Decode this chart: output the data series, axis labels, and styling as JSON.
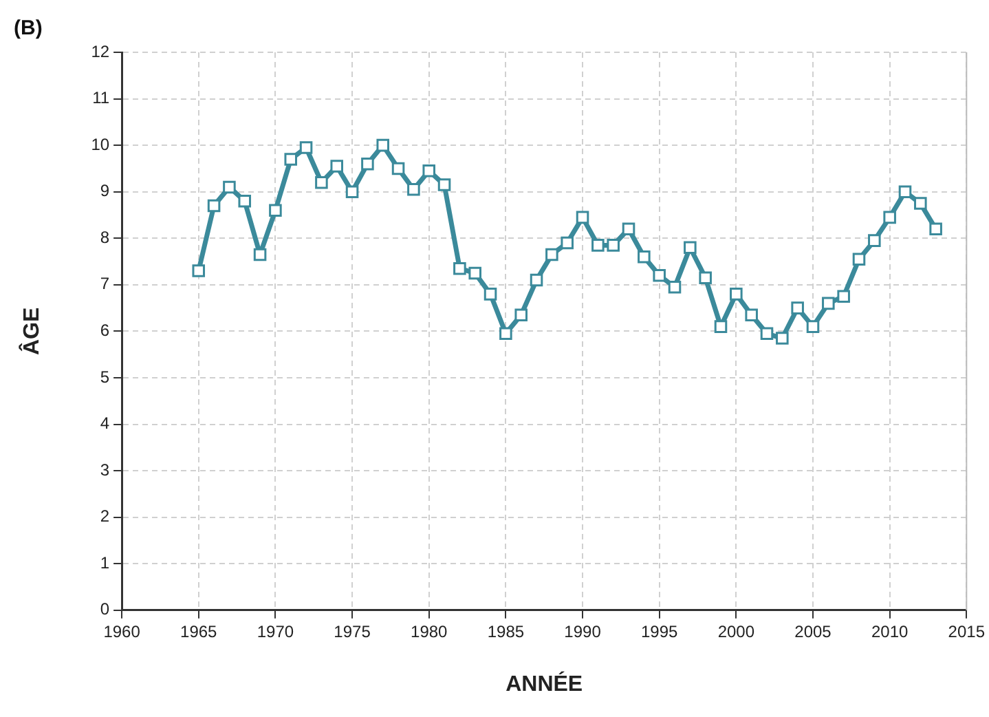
{
  "chart_data": {
    "type": "line",
    "title": "(B)",
    "xlabel": "ANNÉE",
    "ylabel": "ÂGE",
    "x": [
      1965,
      1966,
      1967,
      1968,
      1969,
      1970,
      1971,
      1972,
      1973,
      1974,
      1975,
      1976,
      1977,
      1978,
      1979,
      1980,
      1981,
      1982,
      1983,
      1984,
      1985,
      1986,
      1987,
      1988,
      1989,
      1990,
      1991,
      1992,
      1993,
      1994,
      1995,
      1996,
      1997,
      1998,
      1999,
      2000,
      2001,
      2002,
      2003,
      2004,
      2005,
      2006,
      2007,
      2008,
      2009,
      2010,
      2011,
      2012,
      2013
    ],
    "series": [
      {
        "color": "#3b8a9b",
        "values": [
          7.3,
          8.7,
          9.1,
          8.8,
          7.65,
          8.6,
          9.7,
          9.95,
          9.2,
          9.55,
          9.0,
          9.6,
          10.0,
          9.5,
          9.05,
          9.45,
          9.15,
          7.35,
          7.25,
          6.8,
          5.95,
          6.35,
          7.1,
          7.65,
          7.9,
          8.45,
          7.85,
          7.85,
          8.2,
          7.6,
          7.2,
          6.95,
          7.8,
          7.15,
          6.1,
          6.8,
          6.35,
          5.95,
          5.85,
          6.5,
          6.1,
          6.6,
          6.75,
          7.55,
          7.95,
          8.45,
          9.0,
          8.75,
          8.2
        ]
      }
    ],
    "xlim": [
      1960,
      2015
    ],
    "xticks": [
      1960,
      1965,
      1970,
      1975,
      1980,
      1985,
      1990,
      1995,
      2000,
      2005,
      2010,
      2015
    ],
    "ylim": [
      0,
      12
    ],
    "yticks": [
      0,
      1,
      2,
      3,
      4,
      5,
      6,
      7,
      8,
      9,
      10,
      11,
      12
    ],
    "grid": true,
    "legend": false,
    "marker": "square",
    "line_style": "solid"
  }
}
